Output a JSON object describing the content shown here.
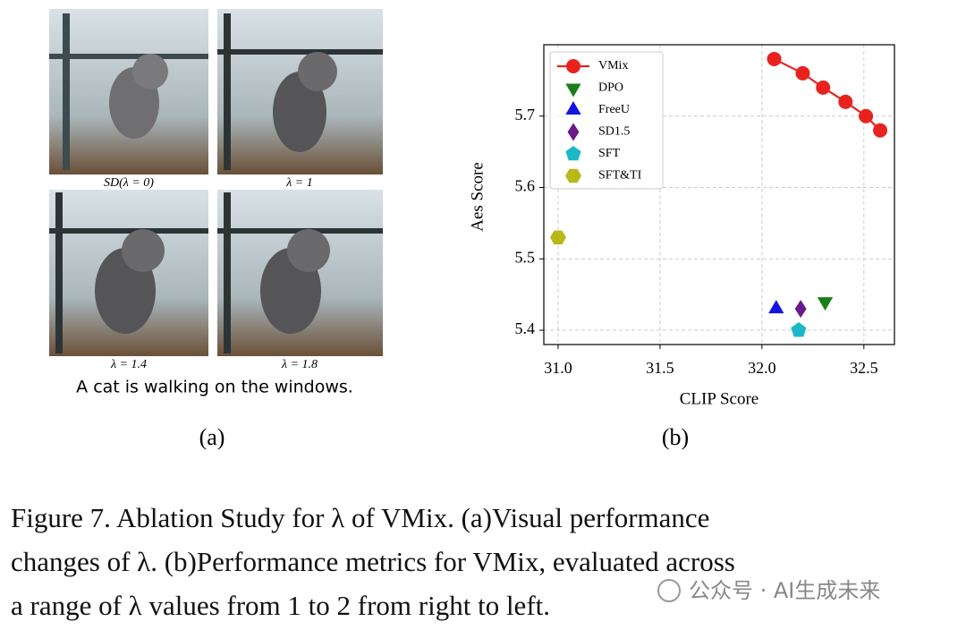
{
  "panel_a": {
    "captions": [
      "SD(λ = 0)",
      "λ = 1",
      "λ = 1.4",
      "λ = 1.8"
    ],
    "prompt": "A cat is walking on the windows.",
    "label": "(a)"
  },
  "chart_data": {
    "type": "scatter",
    "label": "(b)",
    "x_label": "CLIP Score",
    "y_label": "Aes Score",
    "xlim": [
      30.93,
      32.65
    ],
    "ylim": [
      5.38,
      5.8
    ],
    "xticks": [
      {
        "value": 31.0,
        "label": "31.0"
      },
      {
        "value": 31.5,
        "label": "31.5"
      },
      {
        "value": 32.0,
        "label": "32.0"
      },
      {
        "value": 32.5,
        "label": "32.5"
      }
    ],
    "yticks": [
      5.4,
      5.5,
      5.6,
      5.7
    ],
    "grid": true,
    "legend": "upper left",
    "series": [
      {
        "name": "VMix",
        "color": "#e8231f",
        "marker": "circle",
        "line": true,
        "x": [
          32.06,
          32.2,
          32.3,
          32.41,
          32.51,
          32.58
        ],
        "values": [
          5.78,
          5.76,
          5.74,
          5.72,
          5.7,
          5.68
        ]
      },
      {
        "name": "DPO",
        "color": "#1a7f1a",
        "marker": "triangle-down",
        "x": [
          32.31
        ],
        "values": [
          5.44
        ]
      },
      {
        "name": "FreeU",
        "color": "#1515e0",
        "marker": "triangle-up",
        "x": [
          32.07
        ],
        "values": [
          5.43
        ]
      },
      {
        "name": "SD1.5",
        "color": "#6a1a8a",
        "marker": "diamond",
        "x": [
          32.19
        ],
        "values": [
          5.43
        ]
      },
      {
        "name": "SFT",
        "color": "#1ab8c8",
        "marker": "pentagon",
        "x": [
          32.18
        ],
        "values": [
          5.4
        ]
      },
      {
        "name": "SFT&TI",
        "color": "#b8b81a",
        "marker": "hexagon",
        "x": [
          31.0
        ],
        "values": [
          5.53
        ]
      }
    ]
  },
  "caption_lines": [
    "Figure 7.  Ablation Study for λ of VMix.  (a)Visual performance",
    "changes of λ. (b)Performance metrics for VMix, evaluated across",
    "a range of λ values from 1 to 2 from right to left."
  ],
  "watermark": "公众号 · AI生成未来"
}
